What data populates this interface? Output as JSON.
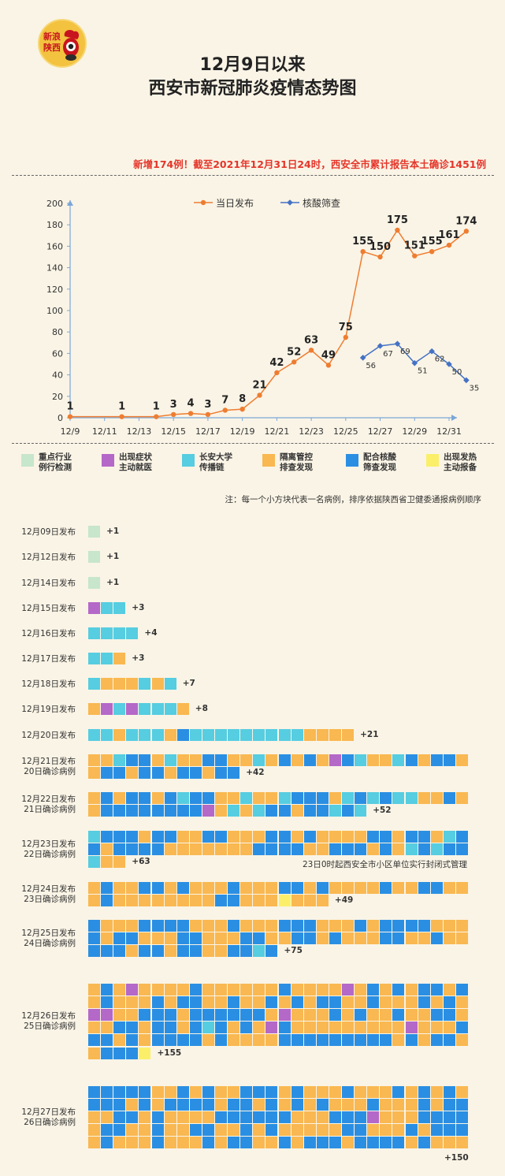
{
  "logo_text": [
    "新浪",
    "陕西"
  ],
  "title_line1": "12月9日以来",
  "title_line2": "西安市新冠肺炎疫情态势图",
  "headline": "新增174例！截至2021年12月31日24时，西安全市累计报告本土确诊1451例",
  "chart_data": [
    {
      "type": "line",
      "title": "",
      "xlabel": "",
      "ylabel": "",
      "legend_position": "top-center",
      "x_ticks": [
        "12/9",
        "12/11",
        "12/13",
        "12/15",
        "12/17",
        "12/19",
        "12/21",
        "12/23",
        "12/25",
        "12/27",
        "12/29",
        "12/31"
      ],
      "y_ticks": [
        0,
        20,
        40,
        60,
        80,
        100,
        120,
        140,
        160,
        180,
        200
      ],
      "ylim": [
        0,
        200
      ],
      "xlim": [
        "12/9",
        "12/31"
      ],
      "grid": false,
      "series": [
        {
          "name": "当日发布",
          "color": "#ee7d31",
          "points": [
            {
              "x": "12/9",
              "y": 1
            },
            {
              "x": "12/12",
              "y": 1
            },
            {
              "x": "12/14",
              "y": 1
            },
            {
              "x": "12/15",
              "y": 3
            },
            {
              "x": "12/16",
              "y": 4
            },
            {
              "x": "12/17",
              "y": 3
            },
            {
              "x": "12/18",
              "y": 7
            },
            {
              "x": "12/19",
              "y": 8
            },
            {
              "x": "12/20",
              "y": 21
            },
            {
              "x": "12/21",
              "y": 42
            },
            {
              "x": "12/22",
              "y": 52
            },
            {
              "x": "12/23",
              "y": 63
            },
            {
              "x": "12/24",
              "y": 49
            },
            {
              "x": "12/25",
              "y": 75
            },
            {
              "x": "12/26",
              "y": 155
            },
            {
              "x": "12/27",
              "y": 150
            },
            {
              "x": "12/28",
              "y": 175
            },
            {
              "x": "12/29",
              "y": 151
            },
            {
              "x": "12/30",
              "y": 155
            },
            {
              "x": "12/31",
              "y": 161
            },
            {
              "x": "1/1",
              "y": 174
            }
          ]
        },
        {
          "name": "核酸筛查",
          "color": "#4472c4",
          "points": [
            {
              "x": "12/26",
              "y": 56
            },
            {
              "x": "12/27",
              "y": 67
            },
            {
              "x": "12/28",
              "y": 69
            },
            {
              "x": "12/29",
              "y": 51
            },
            {
              "x": "12/30",
              "y": 62
            },
            {
              "x": "12/31",
              "y": 50
            },
            {
              "x": "1/1",
              "y": 35
            }
          ]
        }
      ]
    },
    {
      "type": "table",
      "title": "",
      "categories": [
        {
          "label": "重点行业\n例行检测",
          "color": "#c7e6cb"
        },
        {
          "label": "出现症状\n主动就医",
          "color": "#b468c8"
        },
        {
          "label": "长安大学\n传播链",
          "color": "#56cde0"
        },
        {
          "label": "隔离管控\n排查发现",
          "color": "#f9b851"
        },
        {
          "label": "配合核酸\n筛查发现",
          "color": "#2a8fe3"
        },
        {
          "label": "出现发热\n主动报备",
          "color": "#fbef6a"
        }
      ],
      "rows": [
        {
          "label": "12月09日发布",
          "count": "+1",
          "counts": {
            "routine": 1
          }
        },
        {
          "label": "12月12日发布",
          "count": "+1",
          "counts": {
            "routine": 1
          }
        },
        {
          "label": "12月14日发布",
          "count": "+1",
          "counts": {
            "routine": 1
          }
        },
        {
          "label": "12月15日发布",
          "count": "+3",
          "counts": {
            "symptom": 1,
            "university": 2
          }
        },
        {
          "label": "12月16日发布",
          "count": "+4",
          "counts": {
            "university": 4
          }
        },
        {
          "label": "12月17日发布",
          "count": "+3",
          "counts": {
            "university": 2,
            "quarantine": 1
          }
        },
        {
          "label": "12月18日发布",
          "count": "+7",
          "counts": {
            "university": 3,
            "quarantine": 4
          }
        },
        {
          "label": "12月19日发布",
          "count": "+8",
          "counts": {
            "symptom": 2,
            "university": 4,
            "quarantine": 2
          }
        },
        {
          "label": "12月20日发布",
          "count": "+21",
          "counts": {
            "university": 14,
            "quarantine": 6,
            "screening": 1
          }
        },
        {
          "label": "12月21日发布\n20日确诊病例",
          "count": "+42"
        },
        {
          "label": "12月22日发布\n21日确诊病例",
          "count": "+52"
        },
        {
          "label": "12月23日发布\n22日确诊病例",
          "count": "+63"
        },
        {
          "label": "12月24日发布\n23日确诊病例",
          "count": "+49"
        },
        {
          "label": "12月25日发布\n24日确诊病例",
          "count": "+75"
        },
        {
          "label": "12月26日发布\n25日确诊病例",
          "count": "+155"
        },
        {
          "label": "12月27日发布\n26日确诊病例",
          "count": "+150"
        }
      ]
    }
  ],
  "note": "注：每一个小方块代表一名病例，排序依据陕西省卫健委通报病例顺序",
  "annotation": "23日0时起西安全市小区单位实行封闭式管理"
}
